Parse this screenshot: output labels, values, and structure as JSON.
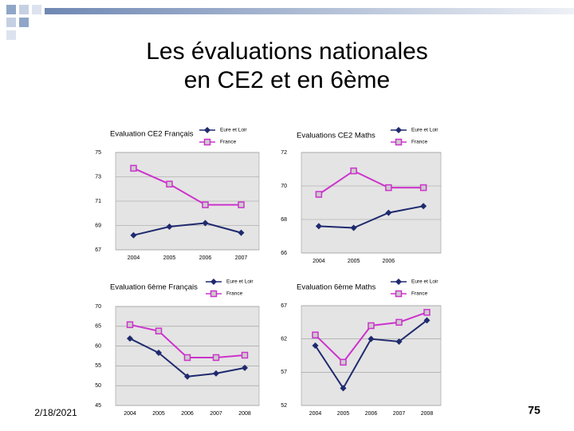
{
  "title": [
    "Les évaluations nationales",
    "en CE2 et en 6ème"
  ],
  "date": "2/18/2021",
  "page_number": "75",
  "chart_data": [
    {
      "type": "line",
      "title": "Evaluation CE2 Français",
      "categories": [
        "2004",
        "2005",
        "2006",
        "2007"
      ],
      "series": [
        {
          "name": "Eure et Loir",
          "color": "#1f2a6e",
          "marker": "diamond",
          "values": [
            68.2,
            68.9,
            69.2,
            68.4
          ]
        },
        {
          "name": "France",
          "color": "#cc33cc",
          "marker": "square",
          "values": [
            73.7,
            72.4,
            70.7,
            70.7
          ]
        }
      ],
      "ylim": [
        67,
        75
      ],
      "yticks": [
        67,
        69,
        71,
        73,
        75
      ],
      "grid": true
    },
    {
      "type": "line",
      "title": "Evaluations CE2 Maths",
      "categories": [
        "2004",
        "2005",
        "2006",
        null
      ],
      "series": [
        {
          "name": "Eure et Loir",
          "color": "#1f2a6e",
          "marker": "diamond",
          "values": [
            67.6,
            67.5,
            68.4,
            68.8
          ]
        },
        {
          "name": "France",
          "color": "#cc33cc",
          "marker": "square",
          "values": [
            69.5,
            70.9,
            69.9,
            69.9
          ]
        }
      ],
      "ylim": [
        66,
        72
      ],
      "yticks": [
        66,
        68,
        70,
        72
      ],
      "grid": true
    },
    {
      "type": "line",
      "title": "Evaluation 6ème Français",
      "categories": [
        "2004",
        "2005",
        "2006",
        "2007",
        "2008"
      ],
      "series": [
        {
          "name": "Eure et Loir",
          "color": "#1f2a6e",
          "marker": "diamond",
          "values": [
            61.9,
            58.3,
            52.3,
            53.1,
            54.5
          ]
        },
        {
          "name": "France",
          "color": "#cc33cc",
          "marker": "square",
          "values": [
            65.4,
            63.8,
            57.1,
            57.1,
            57.7
          ]
        }
      ],
      "ylim": [
        45,
        70
      ],
      "yticks": [
        45,
        50,
        55,
        60,
        65,
        70
      ],
      "grid": true
    },
    {
      "type": "line",
      "title": "Evaluation 6ème Maths",
      "categories": [
        "2004",
        "2005",
        "2006",
        "2007",
        "2008"
      ],
      "series": [
        {
          "name": "Eure et Loir",
          "color": "#1f2a6e",
          "marker": "diamond",
          "values": [
            61.0,
            54.6,
            62.0,
            61.6,
            64.8
          ]
        },
        {
          "name": "France",
          "color": "#cc33cc",
          "marker": "square",
          "values": [
            62.6,
            58.5,
            64.0,
            64.5,
            66.0
          ]
        }
      ],
      "ylim": [
        52,
        67
      ],
      "yticks": [
        52,
        57,
        62,
        67
      ],
      "grid": true
    }
  ]
}
